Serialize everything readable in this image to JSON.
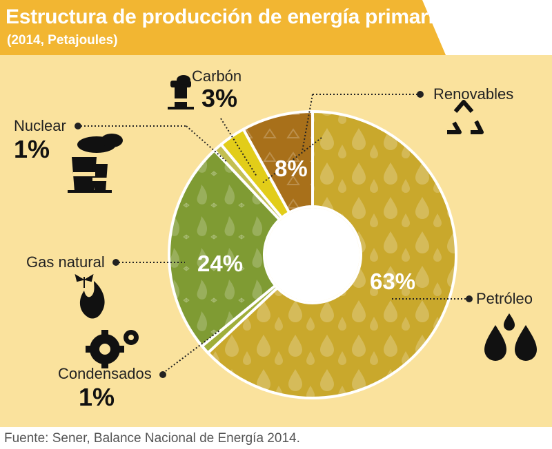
{
  "title": "Estructura de producción de energía primaria",
  "subtitle": "(2014, Petajoules)",
  "source": "Fuente: Sener, Balance Nacional de Energía 2014.",
  "colors": {
    "header": "#f2b632",
    "panel": "#fae29d",
    "petroleo": "#c9a82c",
    "condensados": "#9fae3a",
    "gas_natural": "#7f9b33",
    "nuclear": "#c3bf52",
    "carbon": "#e2cd19",
    "renovables": "#a8701a"
  },
  "chart_data": {
    "type": "pie",
    "subtype": "donut",
    "unit": "%",
    "slices": [
      {
        "label": "Petróleo",
        "value": 63,
        "value_label": "63%",
        "color": "#c9a82c",
        "icon": "oil-drops-icon"
      },
      {
        "label": "Condensados",
        "value": 1,
        "value_label": "1%",
        "color": "#9fae3a",
        "icon": "gears-icon"
      },
      {
        "label": "Gas natural",
        "value": 24,
        "value_label": "24%",
        "color": "#7f9b33",
        "icon": "butterfly-flame-icon"
      },
      {
        "label": "Nuclear",
        "value": 1,
        "value_label": "1%",
        "color": "#c3bf52",
        "icon": "nuclear-plant-icon"
      },
      {
        "label": "Carbón",
        "value": 3,
        "value_label": "3%",
        "color": "#e2cd19",
        "icon": "coal-factory-icon"
      },
      {
        "label": "Renovables",
        "value": 8,
        "value_label": "8%",
        "color": "#a8701a",
        "icon": "recycle-icon"
      }
    ]
  }
}
